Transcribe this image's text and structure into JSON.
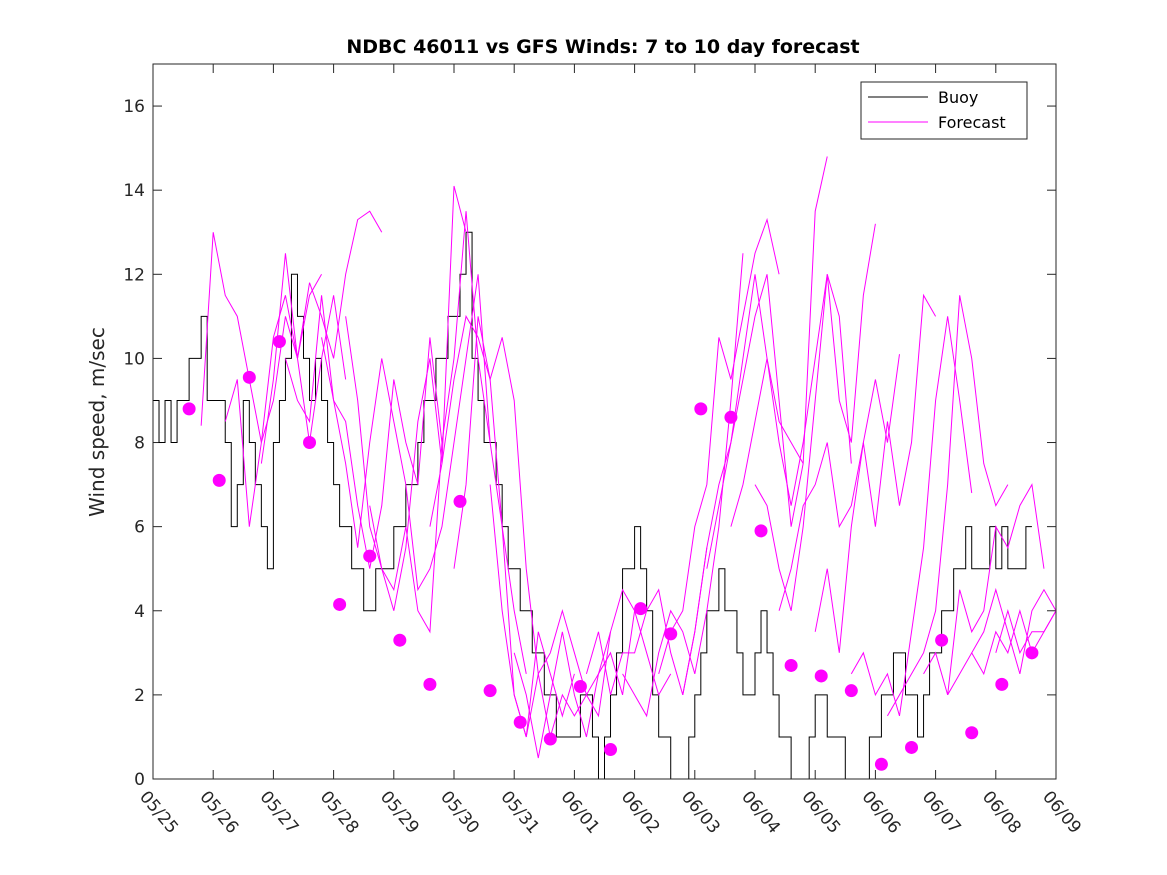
{
  "chart_data": {
    "type": "line",
    "title": "NDBC 46011 vs GFS Winds: 7 to 10 day forecast",
    "xlabel": "",
    "ylabel": "Wind speed, m/sec",
    "x_tick_labels": [
      "05/25",
      "05/26",
      "05/27",
      "05/28",
      "05/29",
      "05/30",
      "05/31",
      "06/01",
      "06/02",
      "06/03",
      "06/04",
      "06/05",
      "06/06",
      "06/07",
      "06/08",
      "06/09"
    ],
    "xlim_days": [
      0,
      15
    ],
    "ylim": [
      0,
      17
    ],
    "y_ticks": [
      0,
      2,
      4,
      6,
      8,
      10,
      12,
      14,
      16
    ],
    "grid": false,
    "legend": {
      "placement": "top-right",
      "entries": [
        "Buoy",
        "Forecast"
      ]
    },
    "colors": {
      "buoy": "#000000",
      "forecast": "#ff00ff"
    },
    "buoy": {
      "name": "Buoy",
      "x_days": [
        0,
        0.1,
        0.2,
        0.3,
        0.4,
        0.5,
        0.6,
        0.7,
        0.8,
        0.9,
        1.0,
        1.1,
        1.2,
        1.3,
        1.4,
        1.5,
        1.6,
        1.7,
        1.8,
        1.9,
        2.0,
        2.1,
        2.2,
        2.3,
        2.4,
        2.5,
        2.6,
        2.7,
        2.8,
        2.9,
        3.0,
        3.1,
        3.2,
        3.3,
        3.4,
        3.5,
        3.6,
        3.7,
        3.8,
        3.9,
        4.0,
        4.1,
        4.2,
        4.3,
        4.4,
        4.5,
        4.6,
        4.7,
        4.8,
        4.9,
        5.0,
        5.1,
        5.2,
        5.3,
        5.4,
        5.5,
        5.6,
        5.7,
        5.8,
        5.9,
        6.0,
        6.1,
        6.2,
        6.3,
        6.4,
        6.5,
        6.6,
        6.7,
        6.8,
        6.9,
        7.0,
        7.1,
        7.2,
        7.3,
        7.4,
        7.5,
        7.6,
        7.7,
        7.8,
        7.9,
        8.0,
        8.1,
        8.2,
        8.3,
        8.4,
        8.5,
        8.6,
        8.7,
        8.8,
        8.9,
        9.0,
        9.1,
        9.2,
        9.3,
        9.4,
        9.5,
        9.6,
        9.7,
        9.8,
        9.9,
        10.0,
        10.1,
        10.2,
        10.3,
        10.4,
        10.5,
        10.6,
        10.7,
        10.8,
        10.9,
        11.0,
        11.1,
        11.2,
        11.3,
        11.4,
        11.5,
        11.6,
        11.7,
        11.8,
        11.9,
        12.0,
        12.1,
        12.2,
        12.3,
        12.4,
        12.5,
        12.6,
        12.7,
        12.8,
        12.9,
        13.0,
        13.1,
        13.2,
        13.3,
        13.4,
        13.5,
        13.6,
        13.7,
        13.8,
        13.9,
        14.0,
        14.1,
        14.2,
        14.3,
        14.4,
        14.5,
        14.6
      ],
      "values": [
        9,
        8,
        9,
        8,
        9,
        9,
        10,
        10,
        11,
        9,
        9,
        9,
        8,
        6,
        7,
        9,
        8,
        7,
        6,
        5,
        8,
        9,
        10,
        12,
        11,
        10,
        9,
        10,
        9,
        8,
        7,
        6,
        6,
        5,
        5,
        4,
        4,
        5,
        5,
        5,
        6,
        6,
        7,
        7,
        8,
        9,
        9,
        10,
        10,
        11,
        11,
        12,
        13,
        10,
        9,
        8,
        8,
        7,
        6,
        5,
        5,
        4,
        4,
        3,
        3,
        2,
        2,
        1,
        1,
        1,
        1,
        2,
        2,
        1,
        0,
        1,
        2,
        3,
        5,
        5,
        6,
        5,
        4,
        2,
        1,
        1,
        0,
        0,
        0,
        1,
        2,
        3,
        4,
        4,
        5,
        4,
        4,
        3,
        2,
        2,
        3,
        4,
        3,
        2,
        1,
        1,
        0,
        0,
        0,
        1,
        2,
        2,
        1,
        1,
        1,
        0,
        0,
        0,
        0,
        1,
        1,
        2,
        2,
        3,
        3,
        2,
        2,
        1,
        2,
        3,
        3,
        4,
        4,
        5,
        5,
        6,
        5,
        5,
        5,
        6,
        5,
        6,
        5,
        5,
        5,
        6,
        6
      ]
    },
    "forecast_series": [
      {
        "x_days": [
          0.8,
          1.0,
          1.2,
          1.4,
          1.6,
          1.8,
          2.0,
          2.2,
          2.4,
          2.6,
          2.8
        ],
        "values": [
          8.4,
          13.0,
          11.5,
          11.0,
          9.5,
          8.0,
          9.0,
          11.0,
          10.0,
          11.5,
          12.0
        ]
      },
      {
        "x_days": [
          1.2,
          1.4,
          1.6,
          1.8,
          2.0,
          2.2,
          2.4,
          2.6,
          2.8,
          3.0,
          3.2
        ],
        "values": [
          8.5,
          9.5,
          6.0,
          8.0,
          10.5,
          11.5,
          10.0,
          8.0,
          10.0,
          11.5,
          9.5
        ]
      },
      {
        "x_days": [
          1.8,
          2.0,
          2.2,
          2.4,
          2.6,
          2.8,
          3.0,
          3.2,
          3.4,
          3.6,
          3.8
        ],
        "values": [
          7.5,
          9.5,
          12.5,
          10.0,
          11.8,
          11.0,
          10.0,
          12.0,
          13.3,
          13.5,
          13.0
        ]
      },
      {
        "x_days": [
          2.2,
          2.4,
          2.6,
          2.8,
          3.0,
          3.2,
          3.4,
          3.6,
          3.8,
          4.0,
          4.2
        ],
        "values": [
          10.0,
          9.0,
          8.5,
          11.5,
          9.0,
          7.5,
          5.5,
          8.0,
          10.0,
          8.5,
          7.0
        ]
      },
      {
        "x_days": [
          2.8,
          3.0,
          3.2,
          3.4,
          3.6,
          3.8,
          4.0,
          4.2,
          4.4,
          4.6,
          4.8
        ],
        "values": [
          10.5,
          9.0,
          8.5,
          6.5,
          5.0,
          6.5,
          9.5,
          8.0,
          7.0,
          10.5,
          8.0
        ]
      },
      {
        "x_days": [
          3.2,
          3.4,
          3.6,
          3.8,
          4.0,
          4.2,
          4.4,
          4.6,
          4.8,
          5.0,
          5.2
        ],
        "values": [
          11.0,
          9.0,
          6.0,
          5.0,
          4.0,
          5.5,
          8.5,
          10.0,
          7.5,
          14.1,
          13.0
        ]
      },
      {
        "x_days": [
          3.6,
          3.8,
          4.0,
          4.2,
          4.4,
          4.6,
          4.8,
          5.0,
          5.2,
          5.4,
          5.6
        ],
        "values": [
          6.5,
          5.0,
          4.5,
          6.0,
          4.0,
          3.5,
          8.0,
          10.0,
          13.5,
          10.0,
          8.0
        ]
      },
      {
        "x_days": [
          4.2,
          4.4,
          4.6,
          4.8,
          5.0,
          5.2,
          5.4,
          5.6,
          5.8,
          6.0,
          6.2
        ],
        "values": [
          7.0,
          4.5,
          5.0,
          6.0,
          8.0,
          10.0,
          12.0,
          8.0,
          6.0,
          4.0,
          2.5
        ]
      },
      {
        "x_days": [
          4.6,
          4.8,
          5.0,
          5.2,
          5.4,
          5.6,
          5.8,
          6.0,
          6.2,
          6.4,
          6.6
        ],
        "values": [
          6.0,
          7.5,
          9.5,
          11.0,
          10.5,
          9.5,
          10.5,
          9.0,
          5.0,
          2.5,
          3.0
        ]
      },
      {
        "x_days": [
          5.0,
          5.2,
          5.4,
          5.6,
          5.8,
          6.0,
          6.2,
          6.4,
          6.6,
          6.8,
          7.0
        ],
        "values": [
          5.0,
          7.0,
          11.0,
          9.5,
          6.0,
          2.0,
          1.0,
          3.5,
          2.5,
          1.5,
          2.5
        ]
      },
      {
        "x_days": [
          5.6,
          5.8,
          6.0,
          6.2,
          6.4,
          6.6,
          6.8,
          7.0,
          7.2,
          7.4,
          7.6
        ],
        "values": [
          7.0,
          4.0,
          2.0,
          1.0,
          2.5,
          1.0,
          2.0,
          1.5,
          2.0,
          2.5,
          3.5
        ]
      },
      {
        "x_days": [
          6.0,
          6.2,
          6.4,
          6.6,
          6.8,
          7.0,
          7.2,
          7.4,
          7.6,
          7.8,
          8.0
        ],
        "values": [
          3.0,
          2.0,
          0.5,
          2.0,
          3.5,
          2.0,
          1.0,
          2.5,
          3.0,
          2.0,
          4.0
        ]
      },
      {
        "x_days": [
          6.6,
          6.8,
          7.0,
          7.2,
          7.4,
          7.6,
          7.8,
          8.0,
          8.2,
          8.4,
          8.6
        ],
        "values": [
          3.0,
          4.0,
          3.0,
          2.0,
          1.5,
          3.5,
          4.5,
          4.0,
          3.0,
          2.0,
          2.5
        ]
      },
      {
        "x_days": [
          7.2,
          7.4,
          7.6,
          7.8,
          8.0,
          8.2,
          8.4,
          8.6,
          8.8,
          9.0,
          9.2
        ],
        "values": [
          2.5,
          3.5,
          2.0,
          3.0,
          3.0,
          4.0,
          4.5,
          3.0,
          2.0,
          3.5,
          5.5
        ]
      },
      {
        "x_days": [
          7.8,
          8.0,
          8.2,
          8.4,
          8.6,
          8.8,
          9.0,
          9.2,
          9.4,
          9.6,
          9.8
        ],
        "values": [
          2.5,
          2.0,
          1.5,
          3.0,
          4.0,
          3.5,
          2.5,
          4.0,
          6.0,
          9.0,
          12.5
        ]
      },
      {
        "x_days": [
          8.4,
          8.6,
          8.8,
          9.0,
          9.2,
          9.4,
          9.6,
          9.8,
          10.0,
          10.2,
          10.4
        ],
        "values": [
          2.5,
          3.5,
          4.0,
          6.0,
          7.0,
          10.5,
          9.5,
          11.0,
          12.5,
          13.3,
          12.0
        ]
      },
      {
        "x_days": [
          8.8,
          9.0,
          9.2,
          9.4,
          9.6,
          9.8,
          10.0,
          10.2,
          10.4,
          10.6,
          10.8
        ],
        "values": [
          2.0,
          3.5,
          5.5,
          7.0,
          8.0,
          10.0,
          12.0,
          10.0,
          8.5,
          8.0,
          7.5
        ]
      },
      {
        "x_days": [
          9.2,
          9.4,
          9.6,
          9.8,
          10.0,
          10.2,
          10.4,
          10.6,
          10.8,
          11.0,
          11.2
        ],
        "values": [
          5.0,
          6.5,
          8.0,
          9.5,
          11.0,
          12.0,
          9.0,
          6.0,
          7.5,
          13.5,
          14.8
        ]
      },
      {
        "x_days": [
          9.6,
          9.8,
          10.0,
          10.2,
          10.4,
          10.6,
          10.8,
          11.0,
          11.2,
          11.4,
          11.6
        ],
        "values": [
          6.0,
          7.0,
          8.5,
          10.0,
          8.0,
          6.5,
          8.0,
          10.0,
          12.0,
          11.0,
          7.5
        ]
      },
      {
        "x_days": [
          10.0,
          10.2,
          10.4,
          10.6,
          10.8,
          11.0,
          11.2,
          11.4,
          11.6,
          11.8,
          12.0
        ],
        "values": [
          7.0,
          6.5,
          5.0,
          4.0,
          6.0,
          9.0,
          12.0,
          9.0,
          8.0,
          11.5,
          13.2
        ]
      },
      {
        "x_days": [
          10.4,
          10.6,
          10.8,
          11.0,
          11.2,
          11.4,
          11.6,
          11.8,
          12.0,
          12.2,
          12.4
        ],
        "values": [
          4.0,
          5.0,
          6.5,
          7.0,
          8.0,
          6.0,
          6.5,
          8.0,
          9.5,
          8.0,
          10.1
        ]
      },
      {
        "x_days": [
          11.0,
          11.2,
          11.4,
          11.6,
          11.8,
          12.0,
          12.2,
          12.4,
          12.6,
          12.8,
          13.0
        ],
        "values": [
          3.5,
          5.0,
          3.0,
          6.0,
          8.0,
          6.0,
          8.5,
          6.5,
          8.0,
          11.5,
          11.0
        ]
      },
      {
        "x_days": [
          11.6,
          11.8,
          12.0,
          12.2,
          12.4,
          12.6,
          12.8,
          13.0,
          13.2,
          13.4,
          13.6
        ],
        "values": [
          2.5,
          3.0,
          2.0,
          2.5,
          1.5,
          3.5,
          5.5,
          9.0,
          11.0,
          9.0,
          6.8
        ]
      },
      {
        "x_days": [
          12.2,
          12.4,
          12.6,
          12.8,
          13.0,
          13.2,
          13.4,
          13.6,
          13.8,
          14.0,
          14.2
        ],
        "values": [
          1.5,
          2.0,
          2.5,
          3.0,
          4.0,
          7.0,
          11.5,
          10.0,
          7.5,
          6.5,
          7.0
        ]
      },
      {
        "x_days": [
          12.8,
          13.0,
          13.2,
          13.4,
          13.6,
          13.8,
          14.0,
          14.2,
          14.4,
          14.6,
          14.8
        ],
        "values": [
          2.5,
          3.0,
          2.0,
          4.5,
          3.5,
          4.0,
          6.0,
          5.5,
          6.5,
          7.0,
          5.0
        ]
      },
      {
        "x_days": [
          13.2,
          13.4,
          13.6,
          13.8,
          14.0,
          14.2,
          14.4,
          14.6,
          14.8,
          15.0
        ],
        "values": [
          2.0,
          2.5,
          3.0,
          2.5,
          3.5,
          3.0,
          4.0,
          3.0,
          3.5,
          4.0
        ]
      },
      {
        "x_days": [
          13.6,
          13.8,
          14.0,
          14.2,
          14.4,
          14.6,
          14.8,
          15.0
        ],
        "values": [
          3.0,
          3.5,
          4.5,
          3.5,
          2.5,
          4.0,
          4.5,
          4.0
        ]
      },
      {
        "x_days": [
          14.0,
          14.2,
          14.4,
          14.6,
          14.8,
          15.0
        ],
        "values": [
          3.0,
          4.0,
          3.0,
          3.5,
          3.5,
          4.0
        ]
      }
    ],
    "forecast_markers": {
      "x_days": [
        0.6,
        1.1,
        1.6,
        2.1,
        2.6,
        3.1,
        3.6,
        4.1,
        4.6,
        5.1,
        5.6,
        6.1,
        6.6,
        7.1,
        7.6,
        8.1,
        8.6,
        9.1,
        9.6,
        10.1,
        10.6,
        11.1,
        11.6,
        12.1,
        12.6,
        13.1,
        13.6,
        14.1,
        14.6
      ],
      "values": [
        8.8,
        7.1,
        9.55,
        10.4,
        8.0,
        4.15,
        5.3,
        3.3,
        2.25,
        6.6,
        2.1,
        1.35,
        0.95,
        2.2,
        0.7,
        4.05,
        3.45,
        8.8,
        8.6,
        5.9,
        2.7,
        2.45,
        2.1,
        0.35,
        0.75,
        3.3,
        1.1,
        2.25,
        3.0
      ]
    }
  }
}
